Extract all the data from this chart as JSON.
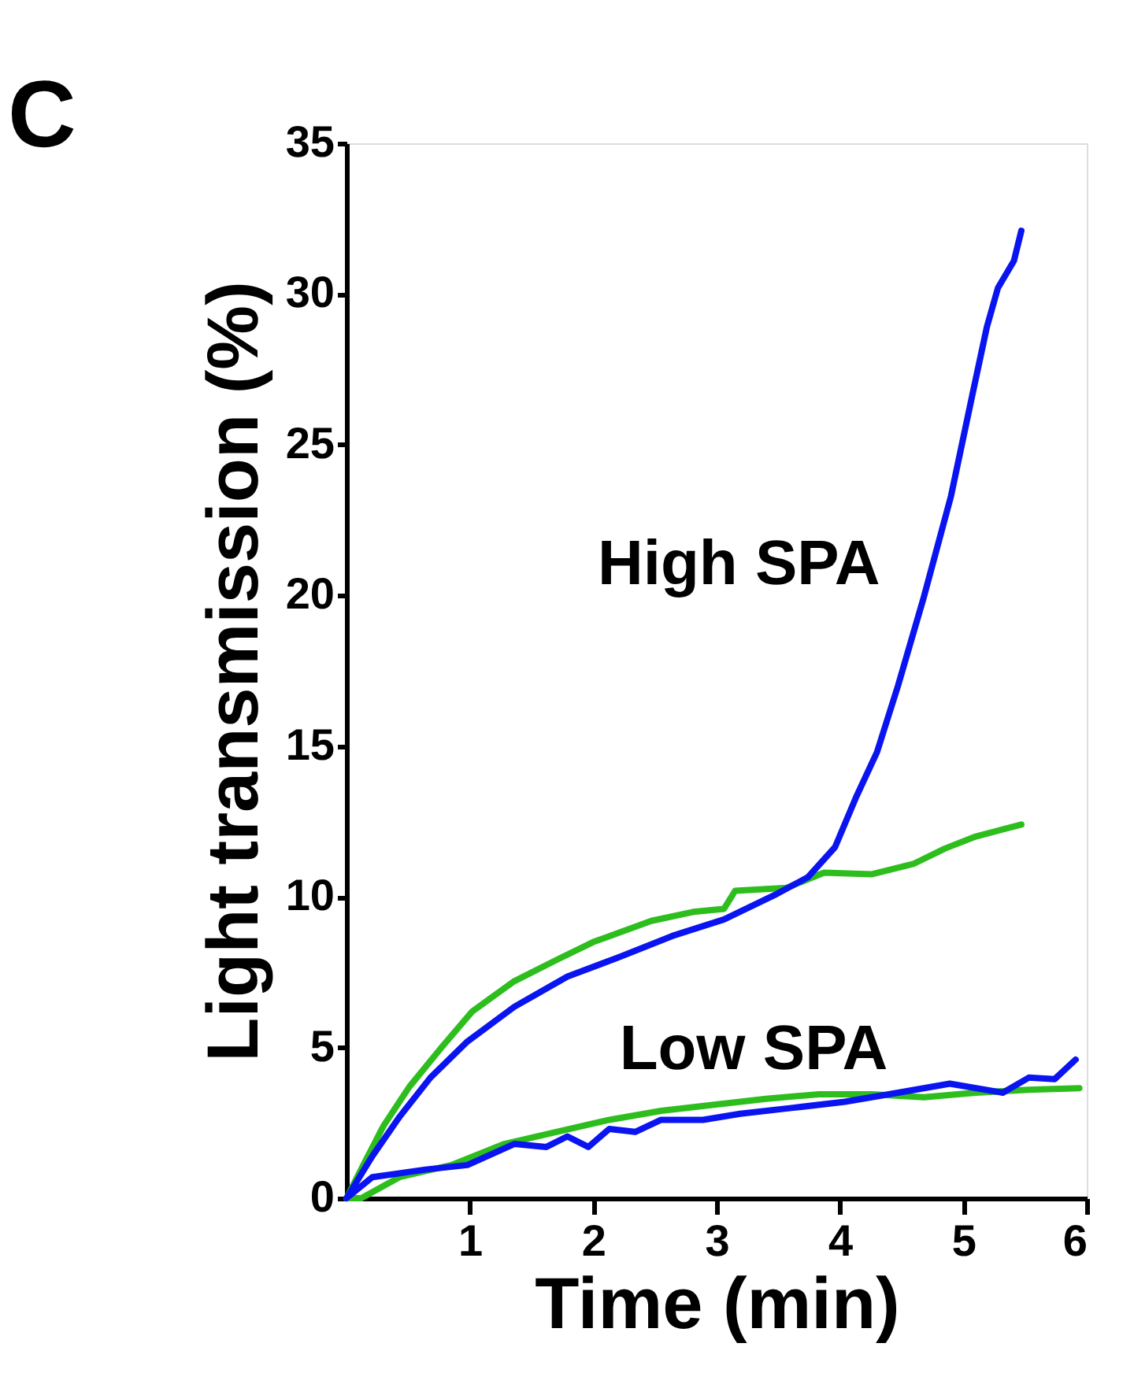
{
  "chart_data": {
    "type": "line",
    "xlabel": "Time (min)",
    "ylabel": "Light transmission (%)",
    "annotations": [
      "C",
      "High SPA",
      "Low SPA"
    ],
    "xlim": [
      0,
      6
    ],
    "xticks": [
      1,
      2,
      3,
      4,
      5,
      6
    ],
    "ylim": [
      0,
      35
    ],
    "yticks": [
      0,
      5,
      10,
      15,
      20,
      25,
      30,
      35
    ],
    "grid": false,
    "line_style": "solid",
    "marker": "none",
    "series": [
      {
        "color": "#2dbe1e",
        "x": [
          0,
          0.13,
          0.3,
          0.51,
          0.77,
          1.02,
          1.36,
          1.7,
          2.0,
          2.47,
          2.81,
          3.06,
          3.15,
          3.57,
          3.87,
          4.26,
          4.6,
          4.85,
          5.1,
          5.47
        ],
        "values": [
          0,
          1.05,
          2.4,
          3.7,
          5.0,
          6.2,
          7.2,
          7.9,
          8.5,
          9.2,
          9.5,
          9.6,
          10.2,
          10.3,
          10.8,
          10.75,
          11.1,
          11.6,
          12.0,
          12.4
        ]
      },
      {
        "color": "#0a14f0",
        "x": [
          0,
          0.21,
          0.43,
          0.68,
          0.98,
          1.36,
          1.79,
          2.21,
          2.64,
          3.06,
          3.49,
          3.74,
          3.96,
          4.13,
          4.3,
          4.47,
          4.68,
          4.9,
          5.07,
          5.19,
          5.28,
          5.41,
          5.47
        ],
        "values": [
          0,
          1.4,
          2.7,
          4.0,
          5.2,
          6.35,
          7.35,
          8.0,
          8.7,
          9.25,
          10.1,
          10.65,
          11.65,
          13.3,
          14.8,
          17.0,
          19.95,
          23.3,
          26.6,
          28.9,
          30.2,
          31.1,
          32.1
        ]
      },
      {
        "color": "#2dbe1e",
        "x": [
          0,
          0.12,
          0.43,
          0.85,
          1.28,
          1.7,
          2.13,
          2.55,
          2.98,
          3.4,
          3.83,
          4.26,
          4.68,
          5.1,
          5.53,
          5.94
        ],
        "values": [
          0,
          0,
          0.7,
          1.1,
          1.8,
          2.2,
          2.6,
          2.9,
          3.1,
          3.3,
          3.45,
          3.45,
          3.35,
          3.5,
          3.6,
          3.65
        ]
      },
      {
        "color": "#0a14f0",
        "x": [
          0,
          0.21,
          0.64,
          0.98,
          1.36,
          1.62,
          1.79,
          1.96,
          2.13,
          2.34,
          2.55,
          2.89,
          3.19,
          3.62,
          4.04,
          4.47,
          4.89,
          5.32,
          5.53,
          5.74,
          5.91
        ],
        "values": [
          0,
          0.7,
          0.95,
          1.1,
          1.8,
          1.7,
          2.05,
          1.7,
          2.3,
          2.2,
          2.6,
          2.6,
          2.8,
          3.0,
          3.2,
          3.5,
          3.8,
          3.5,
          4.0,
          3.95,
          4.6
        ]
      }
    ]
  }
}
